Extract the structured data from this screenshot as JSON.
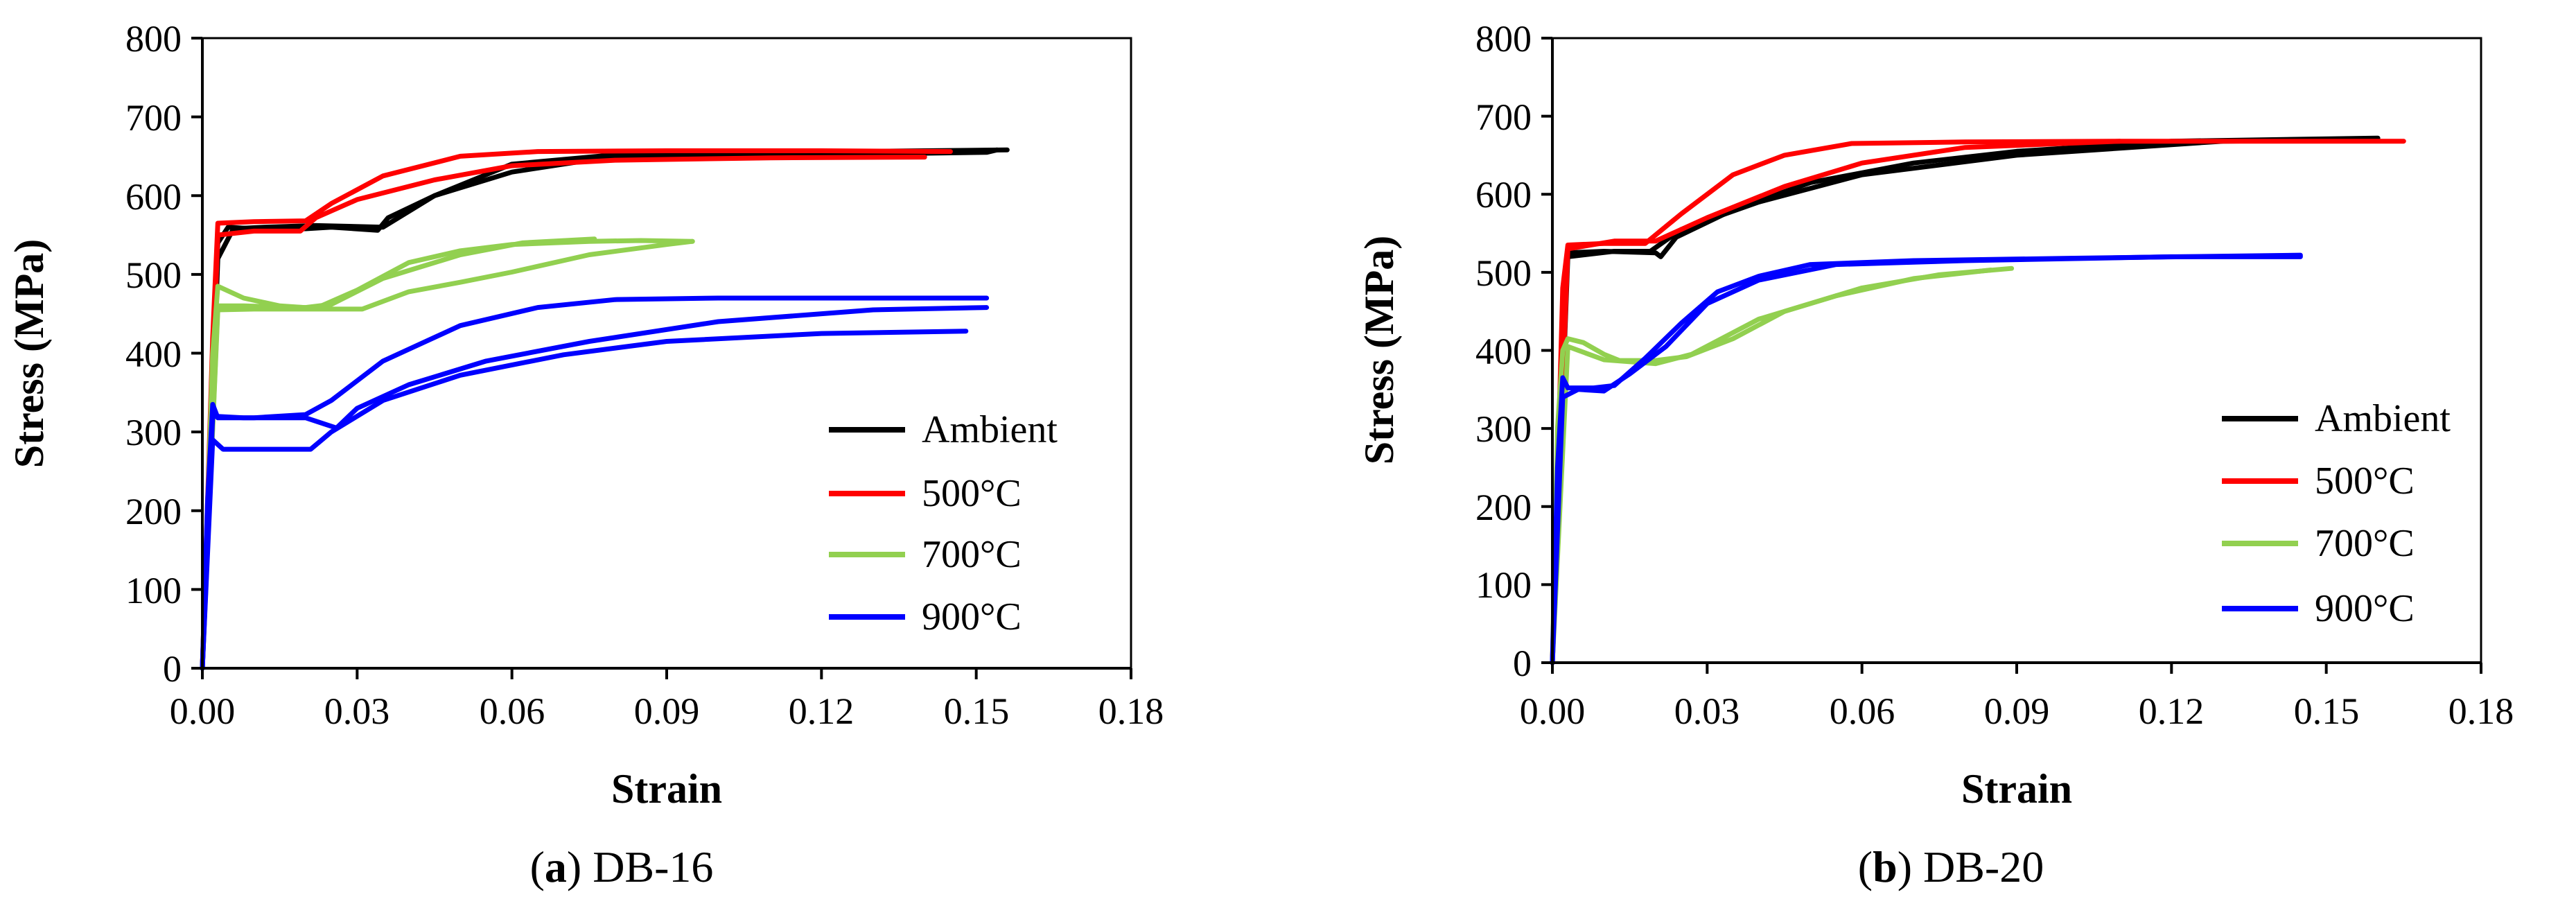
{
  "chart_data": [
    {
      "id": "db16",
      "type": "line",
      "caption_letter": "a",
      "caption_text": "DB-16",
      "xlabel": "Strain",
      "ylabel": "Stress (MPa)",
      "xlim": [
        0,
        0.18
      ],
      "ylim": [
        0,
        800
      ],
      "xticks": [
        0,
        0.03,
        0.06,
        0.09,
        0.12,
        0.15,
        0.18
      ],
      "yticks": [
        0,
        100,
        200,
        300,
        400,
        500,
        600,
        700,
        800
      ],
      "xtick_labels": [
        "0.00",
        "0.03",
        "0.06",
        "0.09",
        "0.12",
        "0.15",
        "0.18"
      ],
      "ytick_labels": [
        "0",
        "100",
        "200",
        "300",
        "400",
        "500",
        "600",
        "700",
        "800"
      ],
      "grid": false,
      "legend_position": "bottom-right",
      "series": [
        {
          "name": "Ambient",
          "color": "#000000",
          "curves": [
            [
              [
                0,
                0
              ],
              [
                0.002,
                380
              ],
              [
                0.003,
                540
              ],
              [
                0.005,
                560
              ],
              [
                0.01,
                558
              ],
              [
                0.02,
                558
              ],
              [
                0.025,
                560
              ],
              [
                0.034,
                556
              ],
              [
                0.036,
                572
              ],
              [
                0.045,
                600
              ],
              [
                0.06,
                630
              ],
              [
                0.075,
                645
              ],
              [
                0.09,
                650
              ],
              [
                0.12,
                652
              ],
              [
                0.152,
                655
              ],
              [
                0.154,
                658
              ]
            ],
            [
              [
                0,
                0
              ],
              [
                0.003,
                520
              ],
              [
                0.006,
                558
              ],
              [
                0.012,
                560
              ],
              [
                0.022,
                562
              ],
              [
                0.035,
                560
              ],
              [
                0.045,
                600
              ],
              [
                0.06,
                640
              ],
              [
                0.08,
                652
              ],
              [
                0.11,
                655
              ],
              [
                0.156,
                658
              ]
            ]
          ]
        },
        {
          "name": "500°C",
          "color": "#ff0000",
          "curves": [
            [
              [
                0,
                0
              ],
              [
                0.002,
                420
              ],
              [
                0.003,
                565
              ],
              [
                0.01,
                567
              ],
              [
                0.02,
                568
              ],
              [
                0.025,
                590
              ],
              [
                0.035,
                625
              ],
              [
                0.05,
                650
              ],
              [
                0.065,
                656
              ],
              [
                0.09,
                657
              ],
              [
                0.12,
                657
              ],
              [
                0.145,
                656
              ]
            ],
            [
              [
                0,
                0
              ],
              [
                0.003,
                550
              ],
              [
                0.01,
                555
              ],
              [
                0.019,
                555
              ],
              [
                0.022,
                572
              ],
              [
                0.03,
                595
              ],
              [
                0.045,
                620
              ],
              [
                0.06,
                638
              ],
              [
                0.08,
                645
              ],
              [
                0.11,
                648
              ],
              [
                0.14,
                649
              ]
            ]
          ]
        },
        {
          "name": "700°C",
          "color": "#92d050",
          "curves": [
            [
              [
                0,
                0
              ],
              [
                0.002,
                400
              ],
              [
                0.003,
                485
              ],
              [
                0.008,
                470
              ],
              [
                0.015,
                460
              ],
              [
                0.022,
                457
              ],
              [
                0.03,
                480
              ],
              [
                0.04,
                515
              ],
              [
                0.05,
                530
              ],
              [
                0.06,
                538
              ],
              [
                0.075,
                542
              ],
              [
                0.085,
                543
              ],
              [
                0.095,
                542
              ]
            ],
            [
              [
                0,
                0
              ],
              [
                0.003,
                460
              ],
              [
                0.008,
                460
              ],
              [
                0.02,
                458
              ],
              [
                0.025,
                462
              ],
              [
                0.035,
                495
              ],
              [
                0.05,
                525
              ],
              [
                0.062,
                540
              ],
              [
                0.076,
                545
              ]
            ],
            [
              [
                0,
                0
              ],
              [
                0.003,
                455
              ],
              [
                0.01,
                456
              ],
              [
                0.02,
                456
              ],
              [
                0.031,
                456
              ],
              [
                0.04,
                478
              ],
              [
                0.05,
                490
              ],
              [
                0.06,
                503
              ],
              [
                0.075,
                525
              ],
              [
                0.09,
                538
              ],
              [
                0.095,
                542
              ]
            ]
          ]
        },
        {
          "name": "900°C",
          "color": "#0000ff",
          "curves": [
            [
              [
                0,
                0
              ],
              [
                0.001,
                210
              ],
              [
                0.002,
                335
              ],
              [
                0.003,
                318
              ],
              [
                0.01,
                318
              ],
              [
                0.02,
                322
              ],
              [
                0.025,
                340
              ],
              [
                0.035,
                390
              ],
              [
                0.05,
                435
              ],
              [
                0.065,
                458
              ],
              [
                0.08,
                468
              ],
              [
                0.1,
                470
              ],
              [
                0.13,
                470
              ],
              [
                0.152,
                470
              ]
            ],
            [
              [
                0,
                0
              ],
              [
                0.002,
                290
              ],
              [
                0.004,
                278
              ],
              [
                0.015,
                278
              ],
              [
                0.021,
                278
              ],
              [
                0.025,
                300
              ],
              [
                0.035,
                340
              ],
              [
                0.05,
                372
              ],
              [
                0.07,
                398
              ],
              [
                0.09,
                415
              ],
              [
                0.12,
                425
              ],
              [
                0.148,
                428
              ]
            ],
            [
              [
                0,
                0
              ],
              [
                0.002,
                320
              ],
              [
                0.008,
                318
              ],
              [
                0.02,
                318
              ],
              [
                0.026,
                305
              ],
              [
                0.03,
                330
              ],
              [
                0.04,
                360
              ],
              [
                0.055,
                390
              ],
              [
                0.075,
                415
              ],
              [
                0.1,
                440
              ],
              [
                0.13,
                455
              ],
              [
                0.152,
                458
              ]
            ]
          ]
        }
      ]
    },
    {
      "id": "db20",
      "type": "line",
      "caption_letter": "b",
      "caption_text": "DB-20",
      "xlabel": "Strain",
      "ylabel": "Stress (MPa)",
      "xlim": [
        0,
        0.18
      ],
      "ylim": [
        0,
        800
      ],
      "xticks": [
        0,
        0.03,
        0.06,
        0.09,
        0.12,
        0.15,
        0.18
      ],
      "yticks": [
        0,
        100,
        200,
        300,
        400,
        500,
        600,
        700,
        800
      ],
      "xtick_labels": [
        "0.00",
        "0.03",
        "0.06",
        "0.09",
        "0.12",
        "0.15",
        "0.18"
      ],
      "ytick_labels": [
        "0",
        "100",
        "200",
        "300",
        "400",
        "500",
        "600",
        "700",
        "800"
      ],
      "grid": false,
      "legend_position": "bottom-right",
      "series": [
        {
          "name": "Ambient",
          "color": "#000000",
          "curves": [
            [
              [
                0,
                0
              ],
              [
                0.002,
                430
              ],
              [
                0.003,
                525
              ],
              [
                0.01,
                527
              ],
              [
                0.02,
                525
              ],
              [
                0.021,
                520
              ],
              [
                0.024,
                545
              ],
              [
                0.035,
                580
              ],
              [
                0.05,
                615
              ],
              [
                0.07,
                640
              ],
              [
                0.09,
                655
              ],
              [
                0.12,
                668
              ],
              [
                0.16,
                672
              ]
            ],
            [
              [
                0,
                0
              ],
              [
                0.003,
                520
              ],
              [
                0.012,
                527
              ],
              [
                0.019,
                527
              ],
              [
                0.025,
                555
              ],
              [
                0.04,
                590
              ],
              [
                0.06,
                625
              ],
              [
                0.09,
                650
              ],
              [
                0.13,
                668
              ],
              [
                0.16,
                670
              ]
            ]
          ]
        },
        {
          "name": "500°C",
          "color": "#ff0000",
          "curves": [
            [
              [
                0,
                0
              ],
              [
                0.002,
                480
              ],
              [
                0.003,
                535
              ],
              [
                0.01,
                537
              ],
              [
                0.018,
                537
              ],
              [
                0.025,
                575
              ],
              [
                0.035,
                625
              ],
              [
                0.045,
                650
              ],
              [
                0.058,
                665
              ],
              [
                0.08,
                667
              ],
              [
                0.11,
                668
              ]
            ],
            [
              [
                0,
                0
              ],
              [
                0.003,
                530
              ],
              [
                0.012,
                540
              ],
              [
                0.02,
                540
              ],
              [
                0.03,
                570
              ],
              [
                0.045,
                610
              ],
              [
                0.06,
                640
              ],
              [
                0.08,
                660
              ],
              [
                0.11,
                668
              ],
              [
                0.14,
                668
              ],
              [
                0.165,
                668
              ]
            ]
          ]
        },
        {
          "name": "700°C",
          "color": "#92d050",
          "curves": [
            [
              [
                0,
                0
              ],
              [
                0.001,
                300
              ],
              [
                0.002,
                400
              ],
              [
                0.003,
                415
              ],
              [
                0.006,
                410
              ],
              [
                0.01,
                395
              ],
              [
                0.013,
                387
              ],
              [
                0.02,
                387
              ],
              [
                0.026,
                392
              ],
              [
                0.035,
                415
              ],
              [
                0.045,
                450
              ],
              [
                0.06,
                480
              ],
              [
                0.075,
                497
              ],
              [
                0.089,
                505
              ]
            ],
            [
              [
                0,
                0
              ],
              [
                0.003,
                405
              ],
              [
                0.01,
                388
              ],
              [
                0.02,
                383
              ],
              [
                0.027,
                395
              ],
              [
                0.04,
                440
              ],
              [
                0.055,
                470
              ],
              [
                0.07,
                492
              ],
              [
                0.085,
                503
              ]
            ]
          ]
        },
        {
          "name": "900°C",
          "color": "#0000ff",
          "curves": [
            [
              [
                0,
                0
              ],
              [
                0.001,
                250
              ],
              [
                0.002,
                365
              ],
              [
                0.003,
                352
              ],
              [
                0.008,
                352
              ],
              [
                0.012,
                355
              ],
              [
                0.018,
                390
              ],
              [
                0.025,
                435
              ],
              [
                0.032,
                475
              ],
              [
                0.04,
                495
              ],
              [
                0.05,
                510
              ],
              [
                0.07,
                515
              ],
              [
                0.1,
                518
              ],
              [
                0.145,
                522
              ]
            ],
            [
              [
                0,
                0
              ],
              [
                0.002,
                340
              ],
              [
                0.005,
                350
              ],
              [
                0.01,
                348
              ],
              [
                0.015,
                370
              ],
              [
                0.022,
                405
              ],
              [
                0.03,
                460
              ],
              [
                0.04,
                490
              ],
              [
                0.055,
                510
              ],
              [
                0.08,
                515
              ],
              [
                0.12,
                520
              ],
              [
                0.145,
                520
              ]
            ]
          ]
        }
      ]
    }
  ]
}
